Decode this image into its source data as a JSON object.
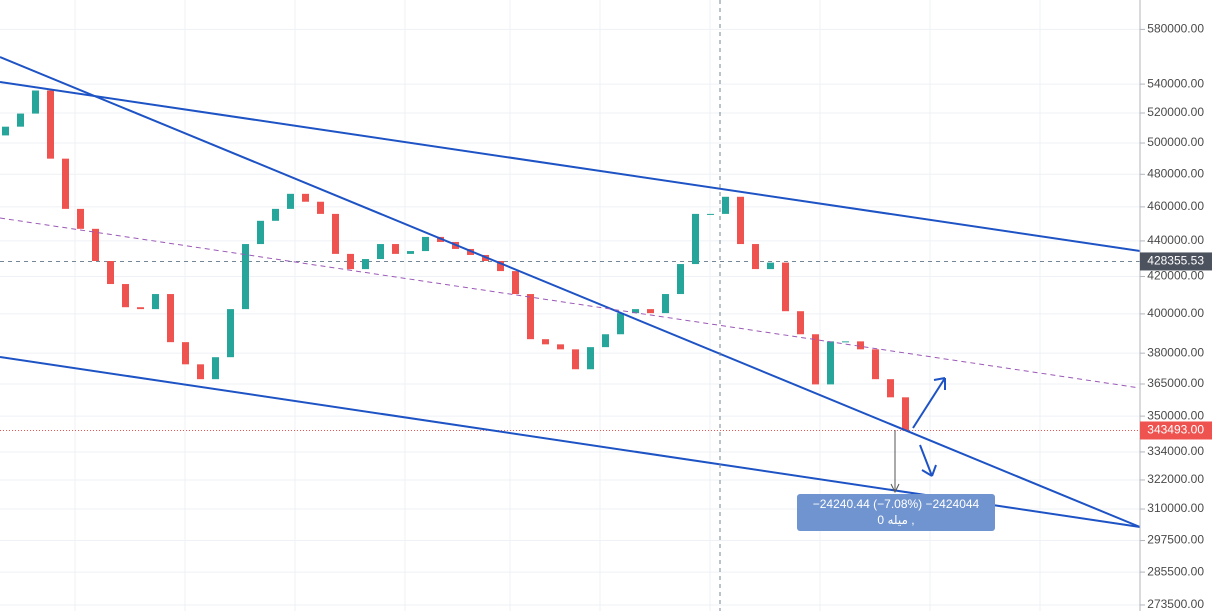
{
  "chart_data": {
    "type": "candlestick",
    "open": [
      505000,
      510800,
      519600,
      535500,
      489900,
      458800,
      447000,
      428600,
      415900,
      403500,
      402500,
      410500,
      385500,
      374500,
      367300,
      378000,
      402500,
      438200,
      451700,
      458800,
      467900,
      463100,
      455800,
      432600,
      424100,
      429700,
      438200,
      432600,
      434200,
      442300,
      439400,
      435400,
      432000,
      428600,
      423000,
      410500,
      387000,
      384400,
      381900,
      372100,
      383000,
      389500,
      400400,
      402500,
      400400,
      410500,
      426900,
      455800,
      455800,
      466100,
      438200,
      424100,
      427700,
      401400,
      389500,
      364800,
      385900,
      385900,
      381900,
      367300,
      358700
    ],
    "close": [
      510800,
      519600,
      535500,
      489900,
      458800,
      447000,
      428600,
      415900,
      403500,
      402500,
      410500,
      385500,
      374500,
      367300,
      378000,
      402500,
      438200,
      451700,
      458800,
      467900,
      463100,
      455800,
      432600,
      424100,
      429700,
      438200,
      432600,
      434200,
      442300,
      439400,
      435400,
      432000,
      428600,
      423000,
      410500,
      387000,
      384400,
      381900,
      372100,
      383000,
      389500,
      400400,
      402500,
      400400,
      410500,
      426900,
      455800,
      455800,
      466100,
      438200,
      424100,
      427700,
      401400,
      389500,
      364800,
      385900,
      385900,
      381900,
      367300,
      358700,
      343493
    ],
    "up_color": "#26a69a",
    "down_color": "#ef5350",
    "log_scale": true,
    "grid": true,
    "ylim": [
      271350,
      602700
    ],
    "yticks": [
      {
        "value": 580000,
        "label": "580000.00"
      },
      {
        "value": 540000,
        "label": "540000.00"
      },
      {
        "value": 520000,
        "label": "520000.00"
      },
      {
        "value": 500000,
        "label": "500000.00"
      },
      {
        "value": 480000,
        "label": "480000.00"
      },
      {
        "value": 460000,
        "label": "460000.00"
      },
      {
        "value": 440000,
        "label": "440000.00"
      },
      {
        "value": 420000,
        "label": "420000.00"
      },
      {
        "value": 400000,
        "label": "400000.00"
      },
      {
        "value": 380000,
        "label": "380000.00"
      },
      {
        "value": 365000,
        "label": "365000.00"
      },
      {
        "value": 350000,
        "label": "350000.00"
      },
      {
        "value": 334000,
        "label": "334000.00"
      },
      {
        "value": 322000,
        "label": "322000.00"
      },
      {
        "value": 310000,
        "label": "310000.00"
      },
      {
        "value": 297500,
        "label": "297500.00"
      },
      {
        "value": 285500,
        "label": "285500.00"
      },
      {
        "value": 273500,
        "label": "273500.00"
      }
    ],
    "crosshair_price": 428355.53,
    "last_price": {
      "value": 343493,
      "label": "343493.00"
    },
    "annotations": [
      "−24240.44 (−7.08%) −2424044",
      "میله 0 ,"
    ]
  }
}
